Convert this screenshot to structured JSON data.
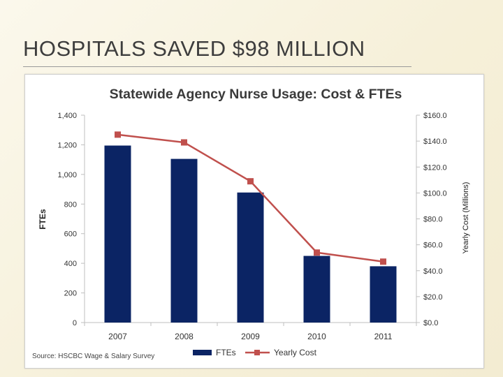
{
  "slide": {
    "title": "HOSPITALS SAVED $98 MILLION"
  },
  "chart_data": {
    "type": "bar",
    "title": "Statewide Agency Nurse Usage: Cost & FTEs",
    "categories": [
      "2007",
      "2008",
      "2009",
      "2010",
      "2011"
    ],
    "series": [
      {
        "name": "FTEs",
        "kind": "bar",
        "axis": "left",
        "color": "#0b2464",
        "values": [
          1195,
          1105,
          878,
          450,
          380
        ]
      },
      {
        "name": "Yearly Cost",
        "kind": "line",
        "axis": "right",
        "color": "#c0504d",
        "values": [
          145,
          139,
          109,
          54,
          47
        ]
      }
    ],
    "ylabel": "FTEs",
    "ylabel_right": "Yearly Cost (Millions)",
    "ylim": [
      0,
      1400
    ],
    "ylim_right": [
      0,
      160
    ],
    "yticks": [
      "0",
      "200",
      "400",
      "600",
      "800",
      "1,000",
      "1,200",
      "1,400"
    ],
    "yticks_right": [
      "$0.0",
      "$20.0",
      "$40.0",
      "$60.0",
      "$80.0",
      "$100.0",
      "$120.0",
      "$140.0",
      "$160.0"
    ],
    "grid": false,
    "legend_position": "bottom",
    "source": "Source: HSCBC Wage & Salary Survey"
  }
}
